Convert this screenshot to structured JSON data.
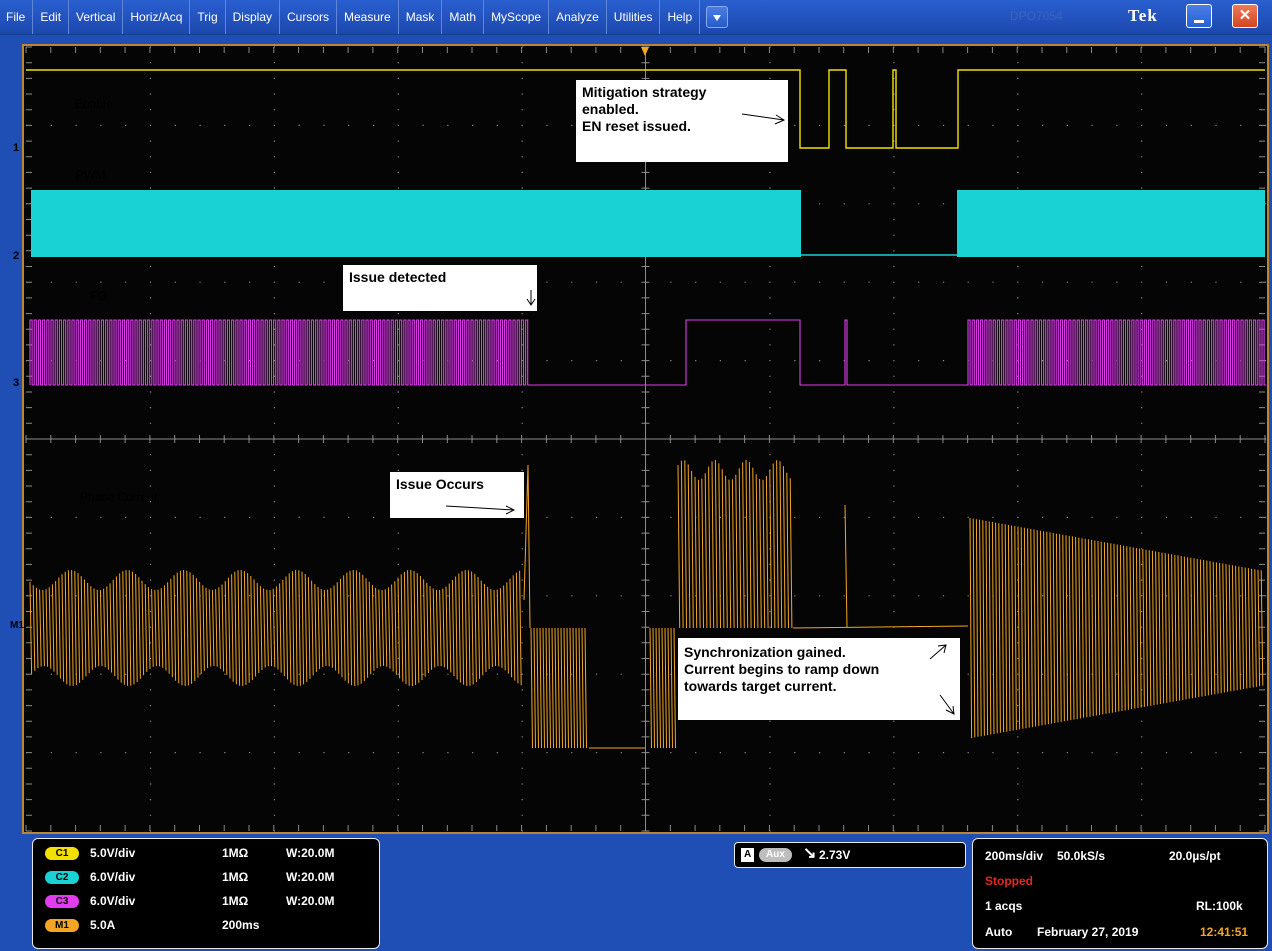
{
  "menu": {
    "items": [
      "File",
      "Edit",
      "Vertical",
      "Horiz/Acq",
      "Trig",
      "Display",
      "Cursors",
      "Measure",
      "Mask",
      "Math",
      "MyScope",
      "Analyze",
      "Utilities",
      "Help"
    ],
    "ghost_text": "DPO7054",
    "brand": "Tek"
  },
  "waveforms": {
    "labels": {
      "enable": "Enable",
      "pwm": "PWM",
      "fg": "FG",
      "phase": "Phase Current"
    },
    "markers": {
      "ch1": "1",
      "ch2": "2",
      "ch3": "3",
      "m1": "M1"
    },
    "colors": {
      "ch1": "#f2e100",
      "ch2": "#18d2d4",
      "ch3": "#e23cf0",
      "m1": "#f4a623",
      "grid": "#8a8a8a"
    }
  },
  "annotations": {
    "mitigation": [
      "Mitigation strategy",
      "enabled.",
      "EN reset issued."
    ],
    "issue_detected": "Issue detected",
    "issue_occurs": "Issue Occurs",
    "sync": [
      "Synchronization gained.",
      "Current begins to ramp down",
      "towards target current."
    ]
  },
  "channels": [
    {
      "badge": "C1",
      "scale": "5.0V/div",
      "impedance": "1MΩ",
      "bw": "W:20.0M",
      "color": "#f2e100"
    },
    {
      "badge": "C2",
      "scale": "6.0V/div",
      "impedance": "1MΩ",
      "bw": "W:20.0M",
      "color": "#18d2d4"
    },
    {
      "badge": "C3",
      "scale": "6.0V/div",
      "impedance": "1MΩ",
      "bw": "W:20.0M",
      "color": "#e23cf0"
    },
    {
      "badge": "M1",
      "scale": "5.0A",
      "impedance": "200ms",
      "bw": "",
      "color": "#f4a623"
    }
  ],
  "trigger": {
    "source_badge": "A",
    "source": "Aux",
    "level": "2.73V"
  },
  "acquisition": {
    "timebase": "200ms/div",
    "sample_rate": "50.0kS/s",
    "resolution": "20.0µs/pt",
    "state": "Stopped",
    "acqs": "1 acqs",
    "record_length": "RL:100k",
    "mode": "Auto",
    "date": "February 27, 2019",
    "time": "12:41:51"
  }
}
